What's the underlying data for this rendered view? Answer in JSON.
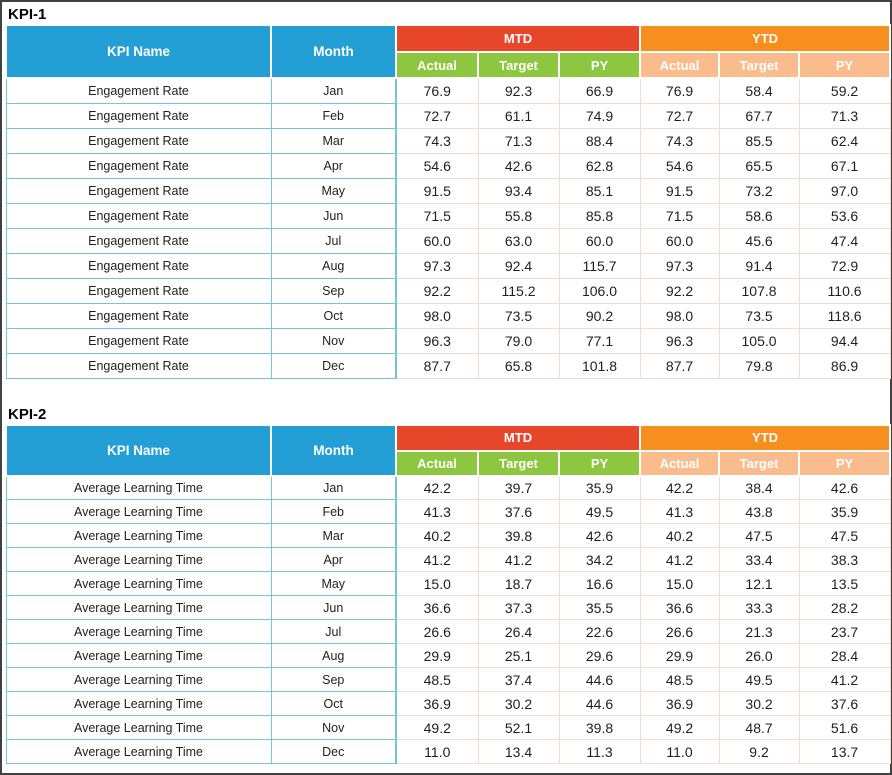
{
  "header_labels": {
    "kpi_name": "KPI Name",
    "month": "Month",
    "mtd": "MTD",
    "ytd": "YTD",
    "actual": "Actual",
    "target": "Target",
    "py": "PY"
  },
  "colors": {
    "header_blue": "#239FD6",
    "mtd_red": "#E8462B",
    "ytd_orange": "#F78F1E",
    "mtd_sub_green": "#8DC63F",
    "ytd_sub_peach": "#FABC8C",
    "teal_cell_border": "#74C6D4",
    "peach_cell_border": "#F6DAC9",
    "frame_border": "#414141"
  },
  "chart_data": [
    {
      "type": "table",
      "title": "KPI-1",
      "kpi_name": "Engagement Rate",
      "column_groups": [
        "MTD",
        "YTD"
      ],
      "columns": [
        "KPI Name",
        "Month",
        "MTD Actual",
        "MTD Target",
        "MTD PY",
        "YTD Actual",
        "YTD Target",
        "YTD PY"
      ],
      "rows": [
        {
          "month": "Jan",
          "values": [
            76.9,
            92.3,
            66.9,
            76.9,
            58.4,
            59.2
          ]
        },
        {
          "month": "Feb",
          "values": [
            72.7,
            61.1,
            74.9,
            72.7,
            67.7,
            71.3
          ]
        },
        {
          "month": "Mar",
          "values": [
            74.3,
            71.3,
            88.4,
            74.3,
            85.5,
            62.4
          ]
        },
        {
          "month": "Apr",
          "values": [
            54.6,
            42.6,
            62.8,
            54.6,
            65.5,
            67.1
          ]
        },
        {
          "month": "May",
          "values": [
            91.5,
            93.4,
            85.1,
            91.5,
            73.2,
            97.0
          ]
        },
        {
          "month": "Jun",
          "values": [
            71.5,
            55.8,
            85.8,
            71.5,
            58.6,
            53.6
          ]
        },
        {
          "month": "Jul",
          "values": [
            60.0,
            63.0,
            60.0,
            60.0,
            45.6,
            47.4
          ]
        },
        {
          "month": "Aug",
          "values": [
            97.3,
            92.4,
            115.7,
            97.3,
            91.4,
            72.9
          ]
        },
        {
          "month": "Sep",
          "values": [
            92.2,
            115.2,
            106.0,
            92.2,
            107.8,
            110.6
          ]
        },
        {
          "month": "Oct",
          "values": [
            98.0,
            73.5,
            90.2,
            98.0,
            73.5,
            118.6
          ]
        },
        {
          "month": "Nov",
          "values": [
            96.3,
            79.0,
            77.1,
            96.3,
            105.0,
            94.4
          ]
        },
        {
          "month": "Dec",
          "values": [
            87.7,
            65.8,
            101.8,
            87.7,
            79.8,
            86.9
          ]
        }
      ]
    },
    {
      "type": "table",
      "title": "KPI-2",
      "kpi_name": "Average Learning Time",
      "column_groups": [
        "MTD",
        "YTD"
      ],
      "columns": [
        "KPI Name",
        "Month",
        "MTD Actual",
        "MTD Target",
        "MTD PY",
        "YTD Actual",
        "YTD Target",
        "YTD PY"
      ],
      "rows": [
        {
          "month": "Jan",
          "values": [
            42.2,
            39.7,
            35.9,
            42.2,
            38.4,
            42.6
          ]
        },
        {
          "month": "Feb",
          "values": [
            41.3,
            37.6,
            49.5,
            41.3,
            43.8,
            35.9
          ]
        },
        {
          "month": "Mar",
          "values": [
            40.2,
            39.8,
            42.6,
            40.2,
            47.5,
            47.5
          ]
        },
        {
          "month": "Apr",
          "values": [
            41.2,
            41.2,
            34.2,
            41.2,
            33.4,
            38.3
          ]
        },
        {
          "month": "May",
          "values": [
            15.0,
            18.7,
            16.6,
            15.0,
            12.1,
            13.5
          ]
        },
        {
          "month": "Jun",
          "values": [
            36.6,
            37.3,
            35.5,
            36.6,
            33.3,
            28.2
          ]
        },
        {
          "month": "Jul",
          "values": [
            26.6,
            26.4,
            22.6,
            26.6,
            21.3,
            23.7
          ]
        },
        {
          "month": "Aug",
          "values": [
            29.9,
            25.1,
            29.6,
            29.9,
            26.0,
            28.4
          ]
        },
        {
          "month": "Sep",
          "values": [
            48.5,
            37.4,
            44.6,
            48.5,
            49.5,
            41.2
          ]
        },
        {
          "month": "Oct",
          "values": [
            36.9,
            30.2,
            44.6,
            36.9,
            30.2,
            37.6
          ]
        },
        {
          "month": "Nov",
          "values": [
            49.2,
            52.1,
            39.8,
            49.2,
            48.7,
            51.6
          ]
        },
        {
          "month": "Dec",
          "values": [
            11.0,
            13.4,
            11.3,
            11.0,
            9.2,
            13.7
          ]
        }
      ]
    }
  ]
}
